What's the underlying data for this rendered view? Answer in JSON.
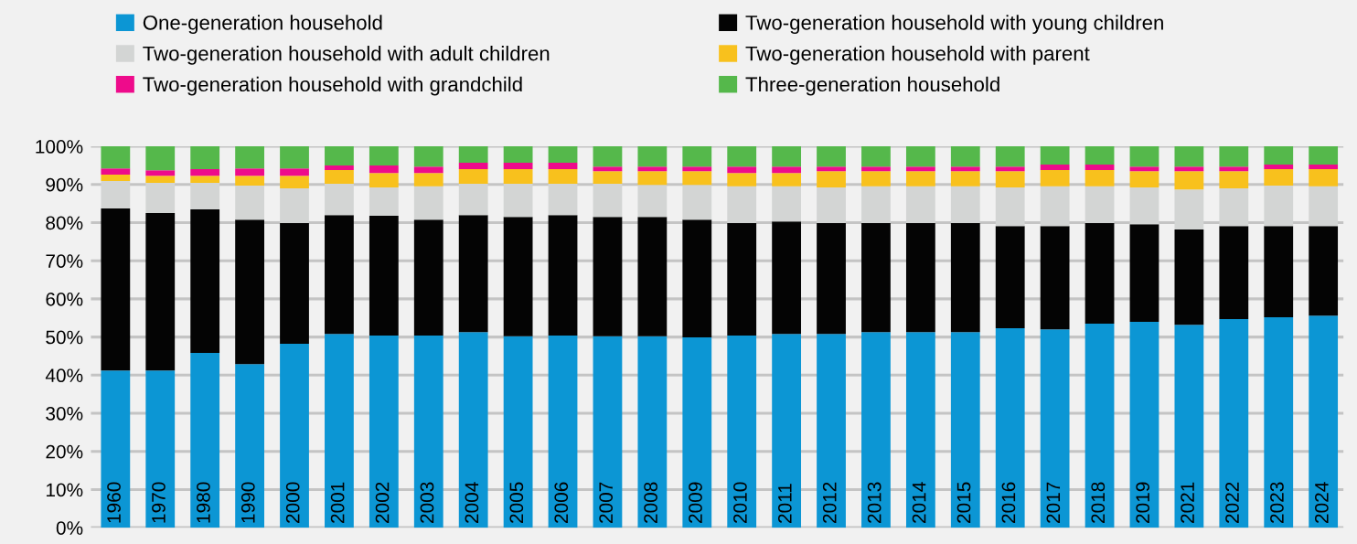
{
  "chart_data": {
    "type": "bar",
    "stacked": true,
    "legend": "top",
    "grid": "y",
    "categories": [
      "1960",
      "1970",
      "1980",
      "1990",
      "2000",
      "2001",
      "2002",
      "2003",
      "2004",
      "2005",
      "2006",
      "2007",
      "2008",
      "2009",
      "2010",
      "2011",
      "2012",
      "2013",
      "2014",
      "2015",
      "2016",
      "2017",
      "2018",
      "2019",
      "2021",
      "2022",
      "2023",
      "2024"
    ],
    "series": [
      {
        "name": "One-generation household",
        "color": "#0c96d4",
        "values": [
          41.2,
          41.2,
          45.8,
          42.9,
          48.2,
          50.8,
          50.4,
          50.4,
          51.3,
          50.2,
          50.4,
          50.2,
          50.2,
          49.9,
          50.4,
          50.8,
          50.8,
          51.3,
          51.3,
          51.3,
          52.3,
          52.0,
          53.5,
          54.0,
          53.2,
          54.7,
          55.2,
          55.6
        ]
      },
      {
        "name": "Two-generation household with young children",
        "color": "#040404",
        "values": [
          42.5,
          41.3,
          37.7,
          37.9,
          31.7,
          31.2,
          31.4,
          30.4,
          30.7,
          31.3,
          31.6,
          31.3,
          31.3,
          30.9,
          29.5,
          29.5,
          29.1,
          28.6,
          28.6,
          28.6,
          26.8,
          27.1,
          26.4,
          25.6,
          25.0,
          24.4,
          23.9,
          23.5
        ]
      },
      {
        "name": "Two-generation household with adult children",
        "color": "#d3d5d4",
        "values": [
          7.2,
          7.9,
          6.9,
          8.9,
          9.1,
          8.2,
          7.4,
          8.7,
          8.2,
          8.7,
          8.2,
          8.7,
          8.4,
          9.1,
          9.6,
          9.2,
          9.3,
          9.6,
          9.6,
          9.6,
          10.1,
          10.4,
          9.6,
          9.6,
          10.5,
          9.9,
          10.6,
          10.4
        ]
      },
      {
        "name": "Two-generation household with parent",
        "color": "#f8c11d",
        "values": [
          1.7,
          1.9,
          1.9,
          2.6,
          3.3,
          3.6,
          3.8,
          3.5,
          3.8,
          3.8,
          3.8,
          3.3,
          3.6,
          3.6,
          3.5,
          3.5,
          4.3,
          4.0,
          4.0,
          4.0,
          4.3,
          4.3,
          4.3,
          4.3,
          4.8,
          4.5,
          4.3,
          4.5
        ]
      },
      {
        "name": "Two-generation household with grandchild",
        "color": "#ee0b8b",
        "values": [
          1.6,
          1.4,
          1.7,
          1.9,
          1.9,
          1.2,
          2.0,
          1.7,
          1.7,
          1.7,
          1.7,
          1.2,
          1.2,
          1.2,
          1.7,
          1.7,
          1.2,
          1.2,
          1.2,
          1.2,
          1.2,
          1.4,
          1.4,
          1.2,
          1.2,
          1.2,
          1.2,
          1.2
        ]
      },
      {
        "name": "Three-generation household",
        "color": "#55b84b",
        "values": [
          5.8,
          6.3,
          6.0,
          5.8,
          5.8,
          5.0,
          5.0,
          5.3,
          4.3,
          4.3,
          4.3,
          5.3,
          5.3,
          5.3,
          5.3,
          5.3,
          5.3,
          5.3,
          5.3,
          5.3,
          5.3,
          4.8,
          4.8,
          5.3,
          5.3,
          5.3,
          4.8,
          4.8
        ]
      }
    ],
    "ylim": [
      0,
      100
    ],
    "yticks": [
      {
        "value": 0,
        "label": "0%"
      },
      {
        "value": 10,
        "label": "10%"
      },
      {
        "value": 20,
        "label": "20%"
      },
      {
        "value": 30,
        "label": "30%"
      },
      {
        "value": 40,
        "label": "40%"
      },
      {
        "value": 50,
        "label": "50%"
      },
      {
        "value": 60,
        "label": "60%"
      },
      {
        "value": 70,
        "label": "70%"
      },
      {
        "value": 80,
        "label": "80%"
      },
      {
        "value": 90,
        "label": "90%"
      },
      {
        "value": 100,
        "label": "100%"
      }
    ]
  }
}
